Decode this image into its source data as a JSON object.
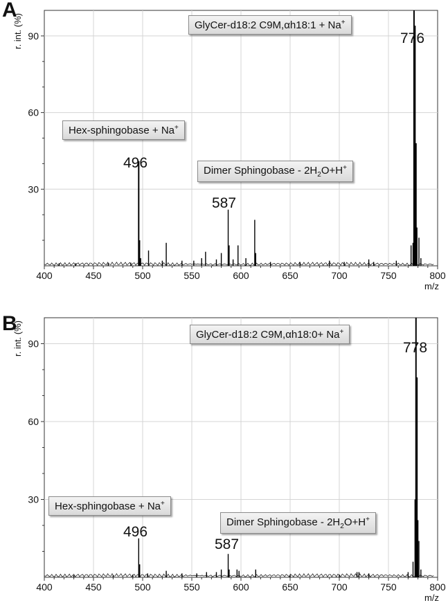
{
  "chart_data": [
    {
      "type": "line",
      "panel_label": "A",
      "ylabel": "r. int. (%)",
      "xlabel": "m/z",
      "xlim": [
        400,
        800
      ],
      "ylim": [
        0,
        100
      ],
      "x_ticks": [
        "400",
        "450",
        "500",
        "550",
        "600",
        "650",
        "700",
        "750",
        "800"
      ],
      "y_ticks": [
        "30",
        "60",
        "90"
      ],
      "grid": true,
      "annotations": [
        {
          "text_main": "GlyCer-d18:2 C9M,αh18:1 + Na",
          "text_sup": "+"
        },
        {
          "text_main": "Hex-sphingobase + Na",
          "text_sup": "+"
        },
        {
          "text_pre": "Dimer Sphingobase - 2H",
          "text_sub": "2",
          "text_post": "O+H",
          "text_sup": "+"
        }
      ],
      "peak_labels": [
        "776",
        "496",
        "587"
      ],
      "peaks": [
        {
          "x": 415,
          "y": 1
        },
        {
          "x": 432,
          "y": 1
        },
        {
          "x": 465,
          "y": 1
        },
        {
          "x": 488,
          "y": 1.2
        },
        {
          "x": 496,
          "y": 41
        },
        {
          "x": 497,
          "y": 10
        },
        {
          "x": 498,
          "y": 3
        },
        {
          "x": 506,
          "y": 6
        },
        {
          "x": 520,
          "y": 2
        },
        {
          "x": 524,
          "y": 9
        },
        {
          "x": 540,
          "y": 2
        },
        {
          "x": 552,
          "y": 2
        },
        {
          "x": 560,
          "y": 3
        },
        {
          "x": 564,
          "y": 5.5
        },
        {
          "x": 575,
          "y": 2.5
        },
        {
          "x": 580,
          "y": 5
        },
        {
          "x": 587,
          "y": 22
        },
        {
          "x": 588,
          "y": 8
        },
        {
          "x": 592,
          "y": 2.5
        },
        {
          "x": 597,
          "y": 8
        },
        {
          "x": 605,
          "y": 3
        },
        {
          "x": 614,
          "y": 18
        },
        {
          "x": 615,
          "y": 5
        },
        {
          "x": 630,
          "y": 1.5
        },
        {
          "x": 660,
          "y": 1.5
        },
        {
          "x": 690,
          "y": 2
        },
        {
          "x": 705,
          "y": 1.5
        },
        {
          "x": 730,
          "y": 2.5
        },
        {
          "x": 735,
          "y": 1.5
        },
        {
          "x": 758,
          "y": 2
        },
        {
          "x": 773,
          "y": 8
        },
        {
          "x": 775,
          "y": 9
        },
        {
          "x": 776,
          "y": 100
        },
        {
          "x": 777,
          "y": 94
        },
        {
          "x": 778,
          "y": 48
        },
        {
          "x": 779,
          "y": 15
        },
        {
          "x": 781,
          "y": 11
        },
        {
          "x": 783,
          "y": 3
        }
      ]
    },
    {
      "type": "line",
      "panel_label": "B",
      "ylabel": "r. int. (%)",
      "xlabel": "m/z",
      "xlim": [
        400,
        800
      ],
      "ylim": [
        0,
        100
      ],
      "x_ticks": [
        "400",
        "450",
        "500",
        "550",
        "600",
        "650",
        "700",
        "750",
        "800"
      ],
      "y_ticks": [
        "30",
        "60",
        "90"
      ],
      "grid": true,
      "annotations": [
        {
          "text_main": "GlyCer-d18:2 C9M,αh18:0+ Na",
          "text_sup": "+"
        },
        {
          "text_main": "Hex-sphingobase + Na",
          "text_sup": "+"
        },
        {
          "text_pre": "Dimer Sphingobase - 2H",
          "text_sub": "2",
          "text_post": "O+H",
          "text_sup": "+"
        }
      ],
      "peak_labels": [
        "778",
        "496",
        "587"
      ],
      "peaks": [
        {
          "x": 430,
          "y": 0.8
        },
        {
          "x": 470,
          "y": 0.8
        },
        {
          "x": 490,
          "y": 1
        },
        {
          "x": 496,
          "y": 15
        },
        {
          "x": 497,
          "y": 5
        },
        {
          "x": 505,
          "y": 1.5
        },
        {
          "x": 524,
          "y": 2.5
        },
        {
          "x": 540,
          "y": 1.5
        },
        {
          "x": 555,
          "y": 1.5
        },
        {
          "x": 565,
          "y": 2
        },
        {
          "x": 575,
          "y": 2
        },
        {
          "x": 580,
          "y": 3
        },
        {
          "x": 587,
          "y": 9
        },
        {
          "x": 588,
          "y": 3
        },
        {
          "x": 596,
          "y": 3
        },
        {
          "x": 598,
          "y": 2.5
        },
        {
          "x": 615,
          "y": 3
        },
        {
          "x": 650,
          "y": 1
        },
        {
          "x": 700,
          "y": 1
        },
        {
          "x": 718,
          "y": 2
        },
        {
          "x": 720,
          "y": 2
        },
        {
          "x": 730,
          "y": 1.5
        },
        {
          "x": 770,
          "y": 2
        },
        {
          "x": 775,
          "y": 6
        },
        {
          "x": 777,
          "y": 30
        },
        {
          "x": 778,
          "y": 100
        },
        {
          "x": 779,
          "y": 77
        },
        {
          "x": 780,
          "y": 22
        },
        {
          "x": 781,
          "y": 14
        },
        {
          "x": 783,
          "y": 3
        }
      ]
    }
  ]
}
